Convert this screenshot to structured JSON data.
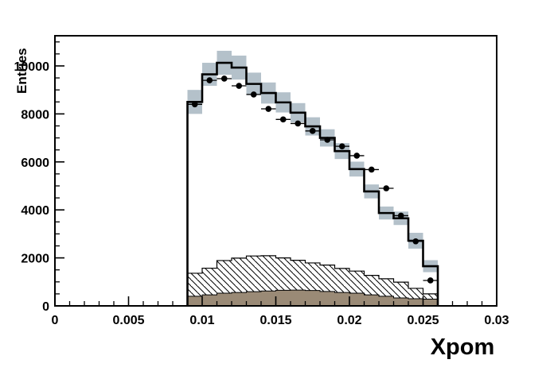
{
  "chart_data": {
    "type": "histogram",
    "title": "",
    "xlabel": "Xpom",
    "ylabel": "Entries",
    "xlim": [
      0,
      0.03
    ],
    "ylim": [
      0,
      11257
    ],
    "grid": false,
    "legend": null,
    "x_major_ticks": [
      0,
      0.005,
      0.01,
      0.015,
      0.02,
      0.025,
      0.03
    ],
    "x_major_labels": [
      "0",
      "0.005",
      "0.01",
      "0.015",
      "0.02",
      "0.025",
      "0.03"
    ],
    "x_minor_step": 0.001,
    "y_major_ticks": [
      0,
      2000,
      4000,
      6000,
      8000,
      10000
    ],
    "y_major_labels": [
      "0",
      "2000",
      "4000",
      "6000",
      "8000",
      "10000"
    ],
    "y_minor_step": 500,
    "bins": {
      "start": 0.009,
      "width": 0.001,
      "count": 17
    },
    "bin_centers": [
      0.0095,
      0.0105,
      0.0115,
      0.0125,
      0.0135,
      0.0145,
      0.0155,
      0.0165,
      0.0175,
      0.0185,
      0.0195,
      0.0205,
      0.0215,
      0.0225,
      0.0235,
      0.0245,
      0.0255
    ],
    "series": {
      "mc_total": {
        "name": "total-mc-step-line",
        "style": "step-outline",
        "color": "#000000",
        "values": [
          8500,
          9650,
          10130,
          9930,
          9250,
          8870,
          8480,
          8050,
          7480,
          7000,
          6450,
          5700,
          4770,
          3870,
          3650,
          2715,
          1655
        ]
      },
      "syst_band": {
        "name": "systematic-uncertainty-band",
        "style": "per-bin-box",
        "color": "#b4c1ca",
        "hi": [
          9000,
          10130,
          10630,
          10430,
          9720,
          9310,
          8900,
          8450,
          7860,
          7360,
          6780,
          6010,
          5060,
          4140,
          3930,
          3045,
          1905
        ],
        "lo": [
          8000,
          9170,
          9630,
          9430,
          8780,
          8430,
          8060,
          7650,
          7100,
          6640,
          6120,
          5390,
          4480,
          3600,
          3370,
          2385,
          1405
        ]
      },
      "data_points": {
        "name": "data-points",
        "style": "marker-with-errors",
        "color": "#000000",
        "values": [
          8400,
          9400,
          9470,
          9170,
          8810,
          8210,
          7770,
          7600,
          7290,
          6920,
          6650,
          6260,
          5680,
          4900,
          3760,
          2690,
          1060
        ],
        "yerr": 110
      },
      "background_hatched": {
        "name": "hatched-background-histogram",
        "style": "hatched-fill",
        "color": "#000000",
        "values": [
          1360,
          1570,
          1890,
          1990,
          2080,
          2090,
          2000,
          1900,
          1790,
          1700,
          1560,
          1450,
          1270,
          1130,
          990,
          730,
          500
        ]
      },
      "background_solid": {
        "name": "solid-background-histogram",
        "style": "solid-fill",
        "color": "#9a8a76",
        "values": [
          400,
          460,
          530,
          560,
          590,
          620,
          650,
          660,
          640,
          600,
          560,
          530,
          460,
          400,
          330,
          300,
          280
        ]
      }
    }
  },
  "colors": {
    "band": "#b4c1ca",
    "solid_hist": "#9a8a76",
    "axis": "#000000",
    "background": "#ffffff"
  }
}
